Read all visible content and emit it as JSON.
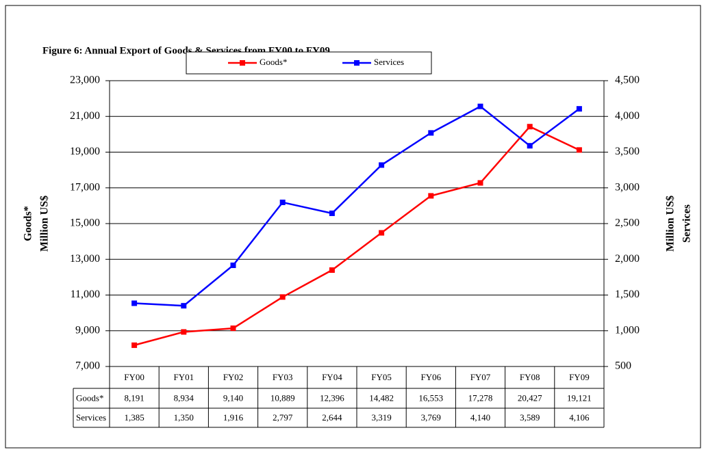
{
  "chart_data": {
    "type": "line",
    "title": "Figure 6:  Annual Export of Goods & Services from FY00 to FY09",
    "ylabel": [
      "Goods*",
      "Million US$"
    ],
    "y2label": [
      "Million US$",
      "Services"
    ],
    "categories": [
      "FY00",
      "FY01",
      "FY02",
      "FY03",
      "FY04",
      "FY05",
      "FY06",
      "FY07",
      "FY08",
      "FY09"
    ],
    "series": [
      {
        "name": "Goods*",
        "color": "#ff0000",
        "axis": "y",
        "values": [
          8191,
          8934,
          9140,
          10889,
          12396,
          14482,
          16553,
          17278,
          20427,
          19121
        ],
        "value_labels": [
          "8,191",
          "8,934",
          "9,140",
          "10,889",
          "12,396",
          "14,482",
          "16,553",
          "17,278",
          "20,427",
          "19,121"
        ]
      },
      {
        "name": "Services",
        "color": "#0000ff",
        "axis": "y2",
        "values": [
          1385,
          1350,
          1916,
          2797,
          2644,
          3319,
          3769,
          4140,
          3589,
          4106
        ],
        "value_labels": [
          "1,385",
          "1,350",
          "1,916",
          "2,797",
          "2,644",
          "3,319",
          "3,769",
          "4,140",
          "3,589",
          "4,106"
        ]
      }
    ],
    "ylim": [
      7000,
      23000
    ],
    "yticks": [
      {
        "value": 7000,
        "label": "7,000"
      },
      {
        "value": 9000,
        "label": "9,000"
      },
      {
        "value": 11000,
        "label": "11,000"
      },
      {
        "value": 13000,
        "label": "13,000"
      },
      {
        "value": 15000,
        "label": "15,000"
      },
      {
        "value": 17000,
        "label": "17,000"
      },
      {
        "value": 19000,
        "label": "19,000"
      },
      {
        "value": 21000,
        "label": "21,000"
      },
      {
        "value": 23000,
        "label": "23,000"
      }
    ],
    "y2lim": [
      500,
      4500
    ],
    "y2ticks": [
      500,
      {
        "value": 1000,
        "label": "1,000"
      },
      {
        "value": 1500,
        "label": "1,500"
      },
      {
        "value": 2000,
        "label": "2,000"
      },
      {
        "value": 2500,
        "label": "2,500"
      },
      {
        "value": 3000,
        "label": "3,000"
      },
      {
        "value": 3500,
        "label": "3,500"
      },
      {
        "value": 4000,
        "label": "4,000"
      },
      {
        "value": 4500,
        "label": "4,500"
      }
    ],
    "grid": true,
    "legend": "top"
  }
}
